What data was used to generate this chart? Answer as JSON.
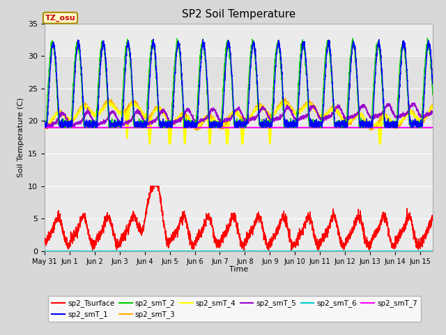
{
  "title": "SP2 Soil Temperature",
  "ylabel": "Soil Temperature (C)",
  "xlabel": "Time",
  "ylim": [
    0,
    35
  ],
  "xlim": [
    0,
    15.5
  ],
  "bg_color": "#d8d8d8",
  "plot_bg": "#ebebeb",
  "legend_colors": [
    "#ff0000",
    "#0000ff",
    "#00cc00",
    "#ffaa00",
    "#ffff00",
    "#9900cc",
    "#00cccc",
    "#ff00ff"
  ],
  "tz_label": "TZ_osu",
  "tz_color": "#cc0000",
  "tz_bg": "#ffffcc",
  "tz_border": "#aa8800",
  "magenta_line_y": 19.0,
  "cyan_line_y": 0.0,
  "shaded_band_low": 20,
  "shaded_band_high": 30,
  "x_tick_labels": [
    "May 31",
    "Jun 1",
    "Jun 2",
    "Jun 3",
    "Jun 4",
    "Jun 5",
    "Jun 6",
    "Jun 7",
    "Jun 8",
    "Jun 9",
    "Jun 10",
    "Jun 11",
    "Jun 12",
    "Jun 13",
    "Jun 14",
    "Jun 15"
  ],
  "x_tick_pos": [
    0,
    1,
    2,
    3,
    4,
    5,
    6,
    7,
    8,
    9,
    10,
    11,
    12,
    13,
    14,
    15
  ],
  "y_ticks": [
    0,
    5,
    10,
    15,
    20,
    25,
    30,
    35
  ]
}
